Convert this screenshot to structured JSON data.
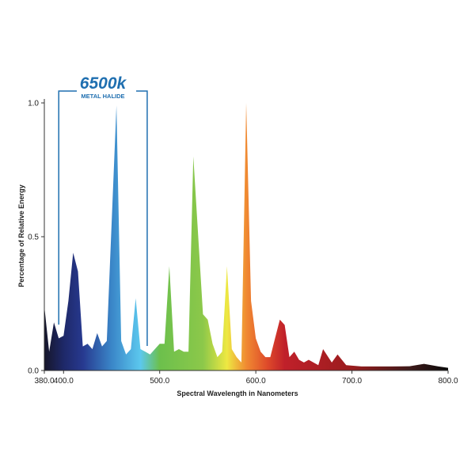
{
  "chart_data": {
    "type": "area",
    "title": "6500k",
    "subtitle": "METAL HALIDE",
    "xlabel": "Spectral Wavelength in Nanometers",
    "ylabel": "Percentage of Relative Energy",
    "xlim": [
      380,
      800
    ],
    "ylim": [
      0,
      1.0
    ],
    "x_ticks": [
      "380.0",
      "400.0",
      "500.0",
      "600.0",
      "700.0",
      "800.0"
    ],
    "x_tick_values": [
      380,
      400,
      500,
      600,
      700,
      800
    ],
    "y_ticks": [
      "0.0",
      "0.5",
      "1.0"
    ],
    "y_tick_values": [
      0,
      0.5,
      1.0
    ],
    "grid": false,
    "series": [
      {
        "name": "6500k Metal Halide",
        "x": [
          380,
          385,
          390,
          395,
          400,
          405,
          410,
          415,
          420,
          425,
          430,
          435,
          440,
          445,
          455,
          460,
          465,
          470,
          475,
          480,
          485,
          490,
          495,
          500,
          505,
          510,
          515,
          520,
          525,
          530,
          535,
          545,
          550,
          555,
          560,
          565,
          570,
          575,
          580,
          585,
          590,
          595,
          600,
          605,
          610,
          615,
          620,
          625,
          630,
          635,
          640,
          645,
          650,
          655,
          665,
          670,
          679,
          685,
          694,
          710,
          740,
          760,
          775,
          790,
          800
        ],
        "y": [
          0.24,
          0.07,
          0.18,
          0.12,
          0.13,
          0.26,
          0.44,
          0.37,
          0.09,
          0.1,
          0.08,
          0.14,
          0.09,
          0.11,
          0.99,
          0.11,
          0.06,
          0.08,
          0.27,
          0.08,
          0.07,
          0.06,
          0.08,
          0.1,
          0.1,
          0.39,
          0.07,
          0.08,
          0.07,
          0.07,
          0.8,
          0.21,
          0.19,
          0.1,
          0.05,
          0.07,
          0.39,
          0.08,
          0.05,
          0.03,
          1.0,
          0.26,
          0.12,
          0.07,
          0.05,
          0.05,
          0.12,
          0.19,
          0.17,
          0.05,
          0.07,
          0.04,
          0.03,
          0.04,
          0.02,
          0.08,
          0.03,
          0.06,
          0.02,
          0.015,
          0.015,
          0.016,
          0.025,
          0.015,
          0.01
        ]
      }
    ],
    "color_stops": [
      {
        "nm": 380,
        "color": "#16162a"
      },
      {
        "nm": 400,
        "color": "#1e2868"
      },
      {
        "nm": 420,
        "color": "#27398f"
      },
      {
        "nm": 450,
        "color": "#3a86c8"
      },
      {
        "nm": 480,
        "color": "#5cc8ee"
      },
      {
        "nm": 500,
        "color": "#6cc04c"
      },
      {
        "nm": 545,
        "color": "#8cc84a"
      },
      {
        "nm": 570,
        "color": "#eee842"
      },
      {
        "nm": 590,
        "color": "#f08a32"
      },
      {
        "nm": 612,
        "color": "#de4a2a"
      },
      {
        "nm": 630,
        "color": "#c0202a"
      },
      {
        "nm": 700,
        "color": "#9a1c1e"
      },
      {
        "nm": 760,
        "color": "#3e1a1a"
      },
      {
        "nm": 800,
        "color": "#0a0a0a"
      }
    ],
    "bracket_range_nm": [
      395,
      487
    ],
    "accent_color": "#1f6fb0"
  }
}
